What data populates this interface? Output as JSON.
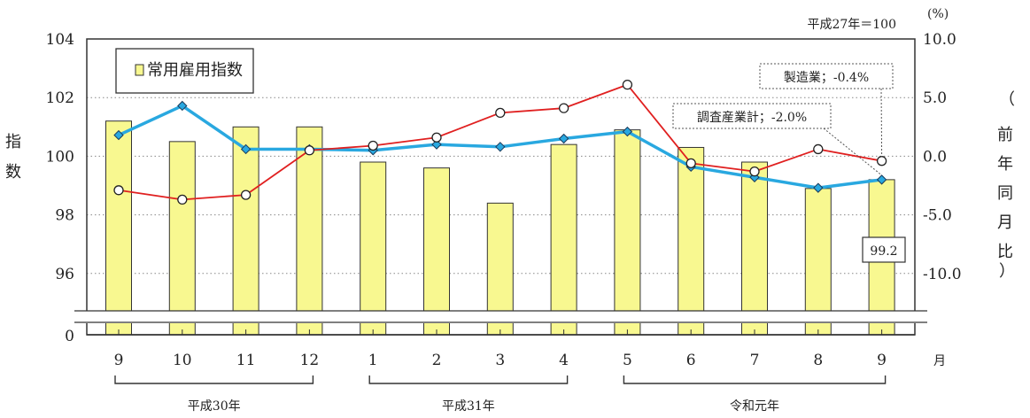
{
  "chart_data": {
    "type": "bar+line",
    "base_note": "平成27年＝100",
    "y_left": {
      "label": [
        "指",
        "数"
      ],
      "ticks": [
        96,
        98,
        100,
        102,
        104
      ],
      "zero_tick": "0",
      "range": [
        95,
        104
      ]
    },
    "y_right": {
      "unit": "(%)",
      "label": [
        "前",
        "年",
        "同",
        "月",
        "比"
      ],
      "ticks": [
        "10.0",
        "5.0",
        "0.0",
        "-5.0",
        "-10.0"
      ],
      "range": [
        -12.5,
        10
      ]
    },
    "categories": [
      "9",
      "10",
      "11",
      "12",
      "1",
      "2",
      "3",
      "4",
      "5",
      "6",
      "7",
      "8",
      "9"
    ],
    "month_unit": "月",
    "year_groups": [
      {
        "label": "平成30年",
        "from": 0,
        "to": 3
      },
      {
        "label": "平成31年",
        "from": 4,
        "to": 7
      },
      {
        "label": "令和元年",
        "from": 8,
        "to": 12
      }
    ],
    "legend": {
      "label": "常用雇用指数",
      "position": "top-left"
    },
    "series": [
      {
        "name": "常用雇用指数",
        "kind": "bar",
        "axis": "left",
        "color": "#f8f890",
        "values": [
          101.2,
          100.5,
          101.0,
          101.0,
          99.8,
          99.6,
          98.4,
          100.4,
          100.9,
          100.3,
          99.8,
          98.9,
          99.2
        ]
      },
      {
        "name": "調査産業計",
        "kind": "line",
        "axis": "right",
        "color": "#29a8e0",
        "values": [
          1.8,
          4.3,
          0.6,
          0.6,
          0.5,
          1.0,
          0.8,
          1.5,
          2.1,
          -0.9,
          -1.8,
          -2.7,
          -2.0
        ]
      },
      {
        "name": "製造業",
        "kind": "line",
        "axis": "right",
        "color": "#e02020",
        "values": [
          -2.9,
          -3.7,
          -3.3,
          0.5,
          0.9,
          1.6,
          3.7,
          4.1,
          6.1,
          -0.6,
          -1.3,
          0.6,
          -0.4
        ]
      }
    ],
    "annotations": [
      {
        "text": "製造業；-0.4%",
        "series": 2,
        "index": 12
      },
      {
        "text": "調査産業計；-2.0%",
        "series": 1,
        "index": 12
      },
      {
        "text": "99.2",
        "series": 0,
        "index": 12
      }
    ],
    "grid": "horizontal-dotted"
  }
}
